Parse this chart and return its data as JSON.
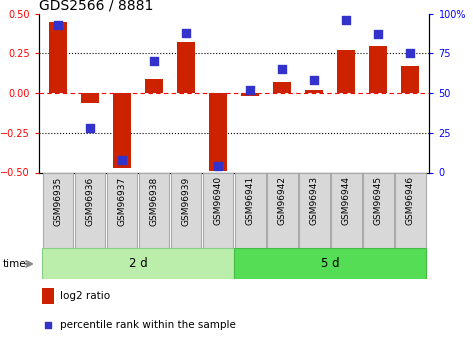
{
  "title": "GDS2566 / 8881",
  "samples": [
    "GSM96935",
    "GSM96936",
    "GSM96937",
    "GSM96938",
    "GSM96939",
    "GSM96940",
    "GSM96941",
    "GSM96942",
    "GSM96943",
    "GSM96944",
    "GSM96945",
    "GSM96946"
  ],
  "log2_ratio": [
    0.45,
    -0.06,
    -0.47,
    0.09,
    0.32,
    -0.49,
    -0.02,
    0.07,
    0.02,
    0.27,
    0.3,
    0.17
  ],
  "percentile_rank": [
    93,
    28,
    8,
    70,
    88,
    4,
    52,
    65,
    58,
    96,
    87,
    75
  ],
  "bar_color": "#cc2200",
  "dot_color": "#3333cc",
  "group1_label": "2 d",
  "group2_label": "5 d",
  "group1_color": "#bbeeaa",
  "group2_color": "#55dd55",
  "ylim_left": [
    -0.5,
    0.5
  ],
  "ylim_right": [
    0,
    100
  ],
  "yticks_left": [
    -0.5,
    -0.25,
    0.0,
    0.25,
    0.5
  ],
  "yticks_right": [
    0,
    25,
    50,
    75,
    100
  ],
  "ytick_labels_right": [
    "0",
    "25",
    "50",
    "75",
    "100%"
  ],
  "legend_log2": "log2 ratio",
  "legend_pct": "percentile rank within the sample",
  "time_label": "time",
  "bar_width": 0.55,
  "dot_size": 40,
  "bg_color": "#ffffff",
  "title_fontsize": 10,
  "tick_fontsize": 7,
  "label_fontsize": 7.5,
  "sample_fontsize": 6.5
}
